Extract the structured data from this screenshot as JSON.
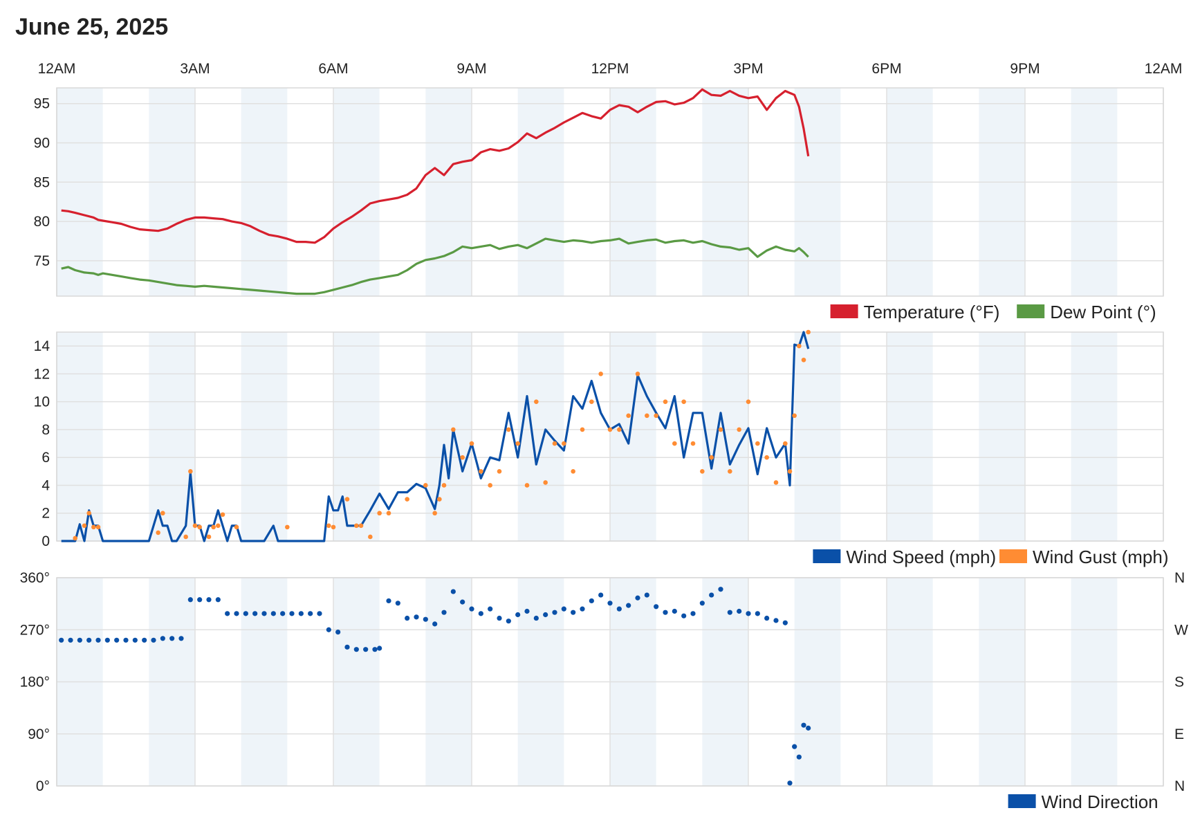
{
  "header": {
    "date": "June 25, 2025"
  },
  "time_axis": [
    "12AM",
    "3AM",
    "6AM",
    "9AM",
    "12PM",
    "3PM",
    "6PM",
    "9PM",
    "12AM"
  ],
  "colors": {
    "temperature": "#d6202e",
    "dew_point": "#5a9a44",
    "wind_speed": "#0a50a8",
    "wind_gust": "#ff8c33",
    "wind_direction": "#0a50a8",
    "shade_band": "#eef4f9",
    "grid": "#e0e0e0"
  },
  "chart_data": [
    {
      "type": "line",
      "x_unit": "hours since 12AM",
      "xlim": [
        0,
        24
      ],
      "ylim": [
        70.5,
        97
      ],
      "yticks": [
        75,
        80,
        85,
        90,
        95
      ],
      "legend": [
        "Temperature (°F)",
        "Dew Point (°)"
      ],
      "legend_position": "bottom-right",
      "series": [
        {
          "name": "Temperature (°F)",
          "x": [
            0.1,
            0.25,
            0.4,
            0.6,
            0.8,
            0.9,
            1.0,
            1.2,
            1.4,
            1.6,
            1.8,
            2.0,
            2.2,
            2.4,
            2.6,
            2.8,
            3.0,
            3.2,
            3.4,
            3.6,
            3.8,
            4.0,
            4.2,
            4.4,
            4.6,
            4.8,
            5.0,
            5.2,
            5.4,
            5.6,
            5.8,
            6.0,
            6.2,
            6.4,
            6.6,
            6.8,
            7.0,
            7.2,
            7.4,
            7.6,
            7.8,
            8.0,
            8.2,
            8.4,
            8.6,
            8.8,
            9.0,
            9.2,
            9.4,
            9.6,
            9.8,
            10.0,
            10.2,
            10.4,
            10.6,
            10.8,
            11.0,
            11.2,
            11.4,
            11.6,
            11.8,
            12.0,
            12.2,
            12.4,
            12.6,
            12.8,
            13.0,
            13.2,
            13.4,
            13.6,
            13.8,
            14.0,
            14.2,
            14.4,
            14.6,
            14.8,
            15.0,
            15.2,
            15.4,
            15.6,
            15.8,
            16.0,
            16.1,
            16.2,
            16.3
          ],
          "y": [
            81.4,
            81.3,
            81.1,
            80.8,
            80.5,
            80.2,
            80.1,
            79.9,
            79.7,
            79.3,
            79.0,
            78.9,
            78.8,
            79.1,
            79.7,
            80.2,
            80.5,
            80.5,
            80.4,
            80.3,
            80.0,
            79.8,
            79.4,
            78.8,
            78.3,
            78.1,
            77.8,
            77.4,
            77.4,
            77.3,
            78.0,
            79.1,
            79.9,
            80.6,
            81.4,
            82.3,
            82.6,
            82.8,
            83.0,
            83.4,
            84.2,
            85.9,
            86.8,
            85.9,
            87.3,
            87.6,
            87.8,
            88.8,
            89.2,
            89.0,
            89.3,
            90.1,
            91.2,
            90.6,
            91.3,
            91.9,
            92.6,
            93.2,
            93.8,
            93.4,
            93.1,
            94.2,
            94.8,
            94.6,
            93.9,
            94.6,
            95.2,
            95.3,
            94.9,
            95.1,
            95.7,
            96.8,
            96.1,
            96.0,
            96.6,
            96.0,
            95.7,
            95.9,
            94.2,
            95.7,
            96.6,
            96.1,
            94.6,
            91.8,
            88.3
          ]
        },
        {
          "name": "Dew Point (°)",
          "x": [
            0.1,
            0.25,
            0.4,
            0.6,
            0.8,
            0.9,
            1.0,
            1.2,
            1.4,
            1.6,
            1.8,
            2.0,
            2.2,
            2.4,
            2.6,
            2.8,
            3.0,
            3.2,
            3.4,
            3.6,
            3.8,
            4.0,
            4.2,
            4.4,
            4.6,
            4.8,
            5.0,
            5.2,
            5.4,
            5.6,
            5.8,
            6.0,
            6.2,
            6.4,
            6.6,
            6.8,
            7.0,
            7.2,
            7.4,
            7.6,
            7.8,
            8.0,
            8.2,
            8.4,
            8.6,
            8.8,
            9.0,
            9.2,
            9.4,
            9.6,
            9.8,
            10.0,
            10.2,
            10.4,
            10.6,
            10.8,
            11.0,
            11.2,
            11.4,
            11.6,
            11.8,
            12.0,
            12.2,
            12.4,
            12.6,
            12.8,
            13.0,
            13.2,
            13.4,
            13.6,
            13.8,
            14.0,
            14.2,
            14.4,
            14.6,
            14.8,
            15.0,
            15.2,
            15.4,
            15.6,
            15.8,
            16.0,
            16.1,
            16.2,
            16.3
          ],
          "y": [
            74.0,
            74.2,
            73.8,
            73.5,
            73.4,
            73.2,
            73.4,
            73.2,
            73.0,
            72.8,
            72.6,
            72.5,
            72.3,
            72.1,
            71.9,
            71.8,
            71.7,
            71.8,
            71.7,
            71.6,
            71.5,
            71.4,
            71.3,
            71.2,
            71.1,
            71.0,
            70.9,
            70.8,
            70.8,
            70.8,
            71.0,
            71.3,
            71.6,
            71.9,
            72.3,
            72.6,
            72.8,
            73.0,
            73.2,
            73.8,
            74.6,
            75.1,
            75.3,
            75.6,
            76.1,
            76.8,
            76.6,
            76.8,
            77.0,
            76.5,
            76.8,
            77.0,
            76.6,
            77.2,
            77.8,
            77.6,
            77.4,
            77.6,
            77.5,
            77.3,
            77.5,
            77.6,
            77.8,
            77.2,
            77.4,
            77.6,
            77.7,
            77.3,
            77.5,
            77.6,
            77.3,
            77.5,
            77.1,
            76.8,
            76.7,
            76.4,
            76.6,
            75.5,
            76.3,
            76.8,
            76.4,
            76.2,
            76.6,
            76.1,
            75.5
          ]
        }
      ]
    },
    {
      "type": "line",
      "x_unit": "hours since 12AM",
      "xlim": [
        0,
        24
      ],
      "ylim": [
        0,
        15
      ],
      "yticks": [
        0,
        2,
        4,
        6,
        8,
        10,
        12,
        14
      ],
      "legend": [
        "Wind Speed (mph)",
        "Wind Gust (mph)"
      ],
      "legend_position": "bottom-right",
      "series": [
        {
          "name": "Wind Speed (mph)",
          "x": [
            0.1,
            0.4,
            0.5,
            0.6,
            0.7,
            0.8,
            0.9,
            1.0,
            1.5,
            2.0,
            2.2,
            2.3,
            2.4,
            2.5,
            2.6,
            2.8,
            2.9,
            3.0,
            3.1,
            3.2,
            3.3,
            3.4,
            3.5,
            3.6,
            3.7,
            3.8,
            3.9,
            4.0,
            4.1,
            4.2,
            4.3,
            4.5,
            4.7,
            4.8,
            4.9,
            5.0,
            5.5,
            5.8,
            5.9,
            6.0,
            6.1,
            6.2,
            6.3,
            6.4,
            6.5,
            6.6,
            6.8,
            7.0,
            7.2,
            7.4,
            7.6,
            7.8,
            8.0,
            8.2,
            8.3,
            8.4,
            8.5,
            8.6,
            8.8,
            9.0,
            9.2,
            9.4,
            9.6,
            9.8,
            10.0,
            10.2,
            10.4,
            10.6,
            10.8,
            11.0,
            11.2,
            11.4,
            11.6,
            11.8,
            12.0,
            12.2,
            12.4,
            12.6,
            12.8,
            13.0,
            13.2,
            13.4,
            13.6,
            13.8,
            14.0,
            14.2,
            14.4,
            14.6,
            14.8,
            15.0,
            15.2,
            15.4,
            15.6,
            15.8,
            15.9,
            16.0,
            16.1,
            16.2,
            16.3
          ],
          "y": [
            0,
            0,
            1.2,
            0,
            2.2,
            1.1,
            1.1,
            0,
            0,
            0,
            2.2,
            1.1,
            1.1,
            0,
            0,
            1.1,
            4.9,
            1.1,
            1.1,
            0,
            1.1,
            1.1,
            2.2,
            1.1,
            0,
            1.1,
            1.1,
            0,
            0,
            0,
            0,
            0,
            1.1,
            0,
            0,
            0,
            0,
            0,
            3.2,
            2.2,
            2.2,
            3.2,
            1.1,
            1.1,
            1.1,
            1.1,
            2.2,
            3.4,
            2.3,
            3.5,
            3.5,
            4.1,
            3.8,
            2.3,
            4.0,
            6.9,
            4.5,
            8.0,
            5.0,
            7.0,
            4.5,
            6.0,
            5.8,
            9.2,
            6.0,
            10.4,
            5.5,
            8.0,
            7.2,
            6.5,
            10.4,
            9.5,
            11.5,
            9.2,
            8.0,
            8.4,
            7.0,
            11.9,
            10.4,
            9.2,
            8.1,
            10.4,
            6.0,
            9.2,
            9.2,
            5.2,
            9.2,
            5.5,
            6.9,
            8.1,
            4.8,
            8.1,
            6.0,
            7.0,
            4.0,
            14.1,
            14.0,
            15.0,
            13.8
          ]
        },
        {
          "name": "Wind Gust (mph)",
          "x": [
            0.4,
            0.6,
            0.7,
            0.8,
            0.9,
            2.2,
            2.3,
            2.8,
            2.9,
            3.0,
            3.1,
            3.3,
            3.4,
            3.5,
            3.6,
            3.9,
            5.0,
            5.9,
            6.0,
            6.3,
            6.5,
            6.6,
            6.8,
            7.0,
            7.2,
            7.6,
            8.0,
            8.2,
            8.3,
            8.4,
            8.6,
            8.8,
            9.0,
            9.2,
            9.4,
            9.6,
            9.8,
            10.0,
            10.2,
            10.4,
            10.6,
            10.8,
            11.0,
            11.2,
            11.4,
            11.6,
            11.8,
            12.0,
            12.2,
            12.4,
            12.6,
            12.8,
            13.0,
            13.2,
            13.4,
            13.6,
            13.8,
            14.0,
            14.2,
            14.4,
            14.6,
            14.8,
            15.0,
            15.2,
            15.4,
            15.6,
            15.8,
            15.9,
            16.0,
            16.1,
            16.2,
            16.3
          ],
          "y": [
            0.2,
            1.1,
            2.0,
            1.0,
            1.0,
            0.6,
            2.0,
            0.3,
            5.0,
            1.1,
            1.0,
            0.3,
            1.0,
            1.1,
            1.9,
            1.0,
            1.0,
            1.1,
            1.0,
            3.0,
            1.1,
            1.1,
            0.3,
            2.0,
            2.0,
            3.0,
            4.0,
            2.0,
            3.0,
            4.0,
            8.0,
            6.0,
            7.0,
            5.0,
            4.0,
            5.0,
            8.0,
            7.0,
            4.0,
            10.0,
            4.2,
            7.0,
            7.0,
            5.0,
            8.0,
            10.0,
            12.0,
            8.0,
            8.0,
            9.0,
            12.0,
            9.0,
            9.0,
            10.0,
            7.0,
            10.0,
            7.0,
            5.0,
            6.0,
            8.0,
            5.0,
            8.0,
            10.0,
            7.0,
            6.0,
            4.2,
            7.0,
            5.0,
            9.0,
            14.0,
            13.0,
            15.0
          ]
        }
      ]
    },
    {
      "type": "scatter",
      "x_unit": "hours since 12AM",
      "xlim": [
        0,
        24
      ],
      "ylim": [
        0,
        360
      ],
      "yticks": [
        "0°",
        "90°",
        "180°",
        "270°",
        "360°"
      ],
      "right_ticks": [
        "N",
        "E",
        "S",
        "W",
        "N"
      ],
      "legend": [
        "Wind Direction"
      ],
      "legend_position": "bottom-right",
      "series": [
        {
          "name": "Wind Direction",
          "x": [
            0.1,
            0.3,
            0.5,
            0.7,
            0.9,
            1.1,
            1.3,
            1.5,
            1.7,
            1.9,
            2.1,
            2.3,
            2.5,
            2.7,
            2.9,
            3.1,
            3.3,
            3.5,
            3.7,
            3.9,
            4.1,
            4.3,
            4.5,
            4.7,
            4.9,
            5.1,
            5.3,
            5.5,
            5.7,
            5.9,
            6.1,
            6.3,
            6.5,
            6.7,
            6.9,
            7.0,
            7.2,
            7.4,
            7.6,
            7.8,
            8.0,
            8.2,
            8.4,
            8.6,
            8.8,
            9.0,
            9.2,
            9.4,
            9.6,
            9.8,
            10.0,
            10.2,
            10.4,
            10.6,
            10.8,
            11.0,
            11.2,
            11.4,
            11.6,
            11.8,
            12.0,
            12.2,
            12.4,
            12.6,
            12.8,
            13.0,
            13.2,
            13.4,
            13.6,
            13.8,
            14.0,
            14.2,
            14.4,
            14.6,
            14.8,
            15.0,
            15.2,
            15.4,
            15.6,
            15.8,
            15.9,
            16.0,
            16.1,
            16.2,
            16.3
          ],
          "y": [
            252,
            252,
            252,
            252,
            252,
            252,
            252,
            252,
            252,
            252,
            252,
            255,
            255,
            255,
            322,
            322,
            322,
            322,
            298,
            298,
            298,
            298,
            298,
            298,
            298,
            298,
            298,
            298,
            298,
            270,
            266,
            240,
            236,
            236,
            236,
            238,
            320,
            316,
            290,
            292,
            288,
            280,
            300,
            336,
            318,
            306,
            298,
            306,
            290,
            285,
            296,
            302,
            290,
            296,
            300,
            306,
            300,
            306,
            320,
            330,
            316,
            306,
            312,
            325,
            330,
            310,
            300,
            302,
            294,
            298,
            316,
            330,
            340,
            300,
            302,
            298,
            298,
            290,
            286,
            282,
            5,
            68,
            50,
            105,
            100
          ]
        }
      ]
    }
  ]
}
